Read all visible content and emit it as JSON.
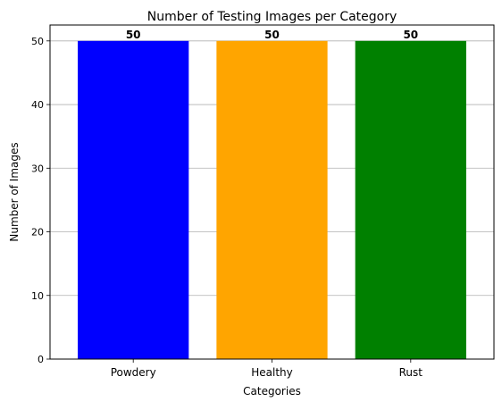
{
  "chart_data": {
    "type": "bar",
    "title": "Number of Testing Images per Category",
    "xlabel": "Categories",
    "ylabel": "Number of Images",
    "categories": [
      "Powdery",
      "Healthy",
      "Rust"
    ],
    "values": [
      50,
      50,
      50
    ],
    "data_labels": [
      "50",
      "50",
      "50"
    ],
    "colors": [
      "#0000ff",
      "#ffa500",
      "#008000"
    ],
    "ylim": [
      0,
      52.5
    ],
    "yticks": [
      0,
      10,
      20,
      30,
      40,
      50
    ],
    "grid": "y-major",
    "legend": "none"
  }
}
